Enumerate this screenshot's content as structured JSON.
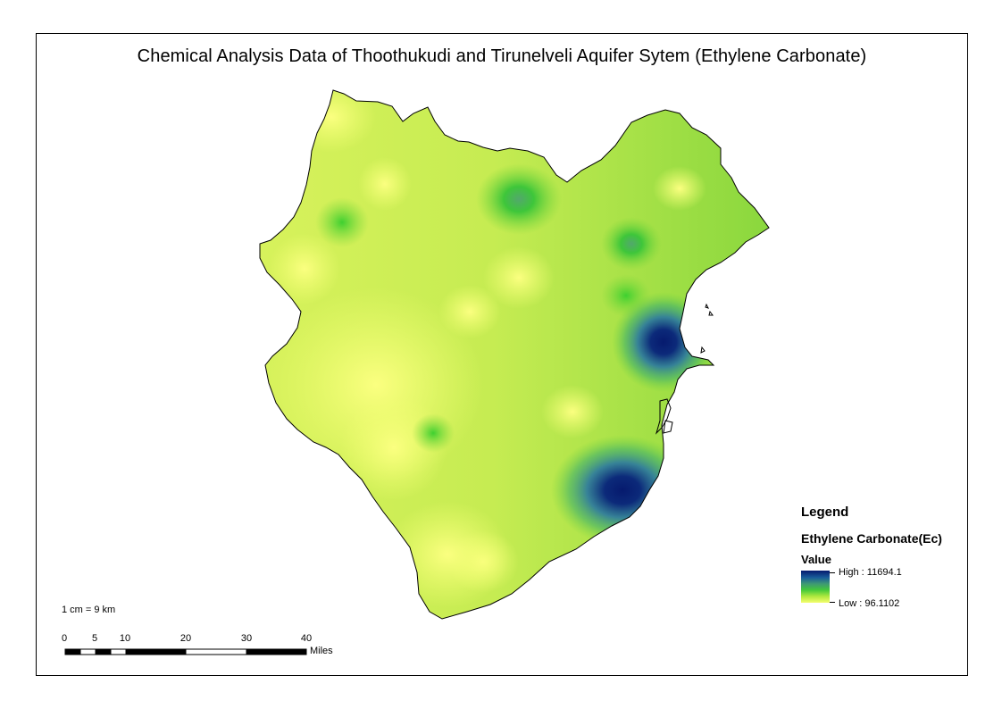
{
  "map": {
    "title": "Chemical Analysis Data of Thoothukudi and Tirunelveli Aquifer Sytem (Ethylene Carbonate)",
    "colors": {
      "low": "#f5ff6e",
      "mid_light": "#aee83e",
      "mid": "#42c83a",
      "mid_dark": "#3f9b72",
      "high_mid": "#1a5d9a",
      "high": "#061a6e",
      "outline": "#000000"
    }
  },
  "legend": {
    "heading": "Legend",
    "layer_name": "Ethylene Carbonate(Ec)",
    "field_name": "Value",
    "high_label": "High : 11694.1",
    "low_label": "Low : 96.1102",
    "high_value": 11694.1,
    "low_value": 96.1102
  },
  "scale": {
    "ratio_text": "1 cm = 9 km",
    "tick_labels": [
      "0",
      "5",
      "10",
      "20",
      "30",
      "40"
    ],
    "units": "Miles"
  }
}
